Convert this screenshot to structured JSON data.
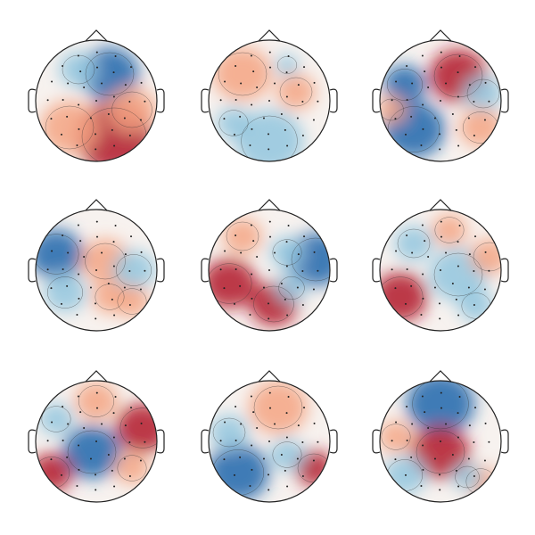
{
  "chart_data": {
    "type": "topomap"
  }
}
